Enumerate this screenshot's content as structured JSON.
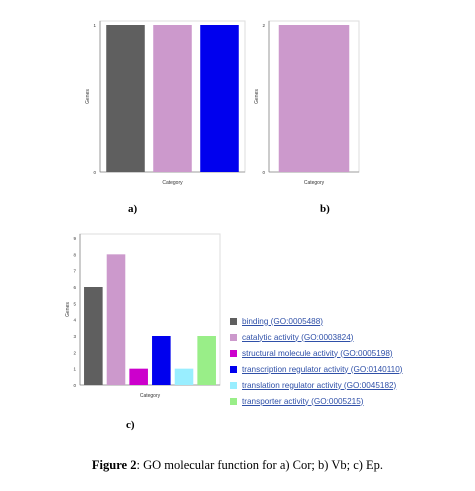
{
  "charts": [
    {
      "id": "a",
      "panel_label": "a)",
      "type": "bar",
      "xlabel": "Category",
      "ylabel": "Genes",
      "ylim": [
        0,
        1
      ],
      "yticks": [
        0,
        1
      ],
      "categories": [
        "binding (GO:0005488)",
        "catalytic activity (GO:0003824)",
        "transcription regulator activity (GO:0140110)"
      ],
      "values": [
        1,
        1,
        1
      ],
      "colors": [
        "#5f5f5f",
        "#cc99cc",
        "#0000ee"
      ]
    },
    {
      "id": "b",
      "panel_label": "b)",
      "type": "bar",
      "xlabel": "Category",
      "ylabel": "Genes",
      "ylim": [
        0,
        2
      ],
      "yticks": [
        0,
        2
      ],
      "categories": [
        "catalytic activity (GO:0003824)"
      ],
      "values": [
        2
      ],
      "colors": [
        "#cc99cc"
      ]
    },
    {
      "id": "c",
      "panel_label": "c)",
      "type": "bar",
      "xlabel": "Category",
      "ylabel": "Genes",
      "ylim": [
        0,
        9
      ],
      "yticks": [
        0,
        1,
        2,
        3,
        4,
        5,
        6,
        7,
        8,
        9
      ],
      "categories": [
        "binding (GO:0005488)",
        "catalytic activity (GO:0003824)",
        "structural molecule activity (GO:0005198)",
        "transcription regulator activity (GO:0140110)",
        "translation regulator activity (GO:0045182)",
        "transporter activity (GO:0005215)"
      ],
      "values": [
        6,
        8,
        1,
        3,
        1,
        3
      ],
      "colors": [
        "#5f5f5f",
        "#cc99cc",
        "#cc00cc",
        "#0000ee",
        "#99eeff",
        "#99ee88"
      ]
    }
  ],
  "legend": [
    {
      "label": "binding (GO:0005488)",
      "color": "#5f5f5f"
    },
    {
      "label": "catalytic activity (GO:0003824)",
      "color": "#cc99cc"
    },
    {
      "label": "structural molecule activity (GO:0005198)",
      "color": "#cc00cc"
    },
    {
      "label": "transcription regulator activity (GO:0140110)",
      "color": "#0000ee"
    },
    {
      "label": "translation regulator activity (GO:0045182)",
      "color": "#99eeff"
    },
    {
      "label": "transporter activity (GO:0005215)",
      "color": "#99ee88"
    }
  ],
  "caption": {
    "bold": "Figure 2",
    "text": ": GO molecular function for a) Cor; b) Vb; c) Ep."
  }
}
